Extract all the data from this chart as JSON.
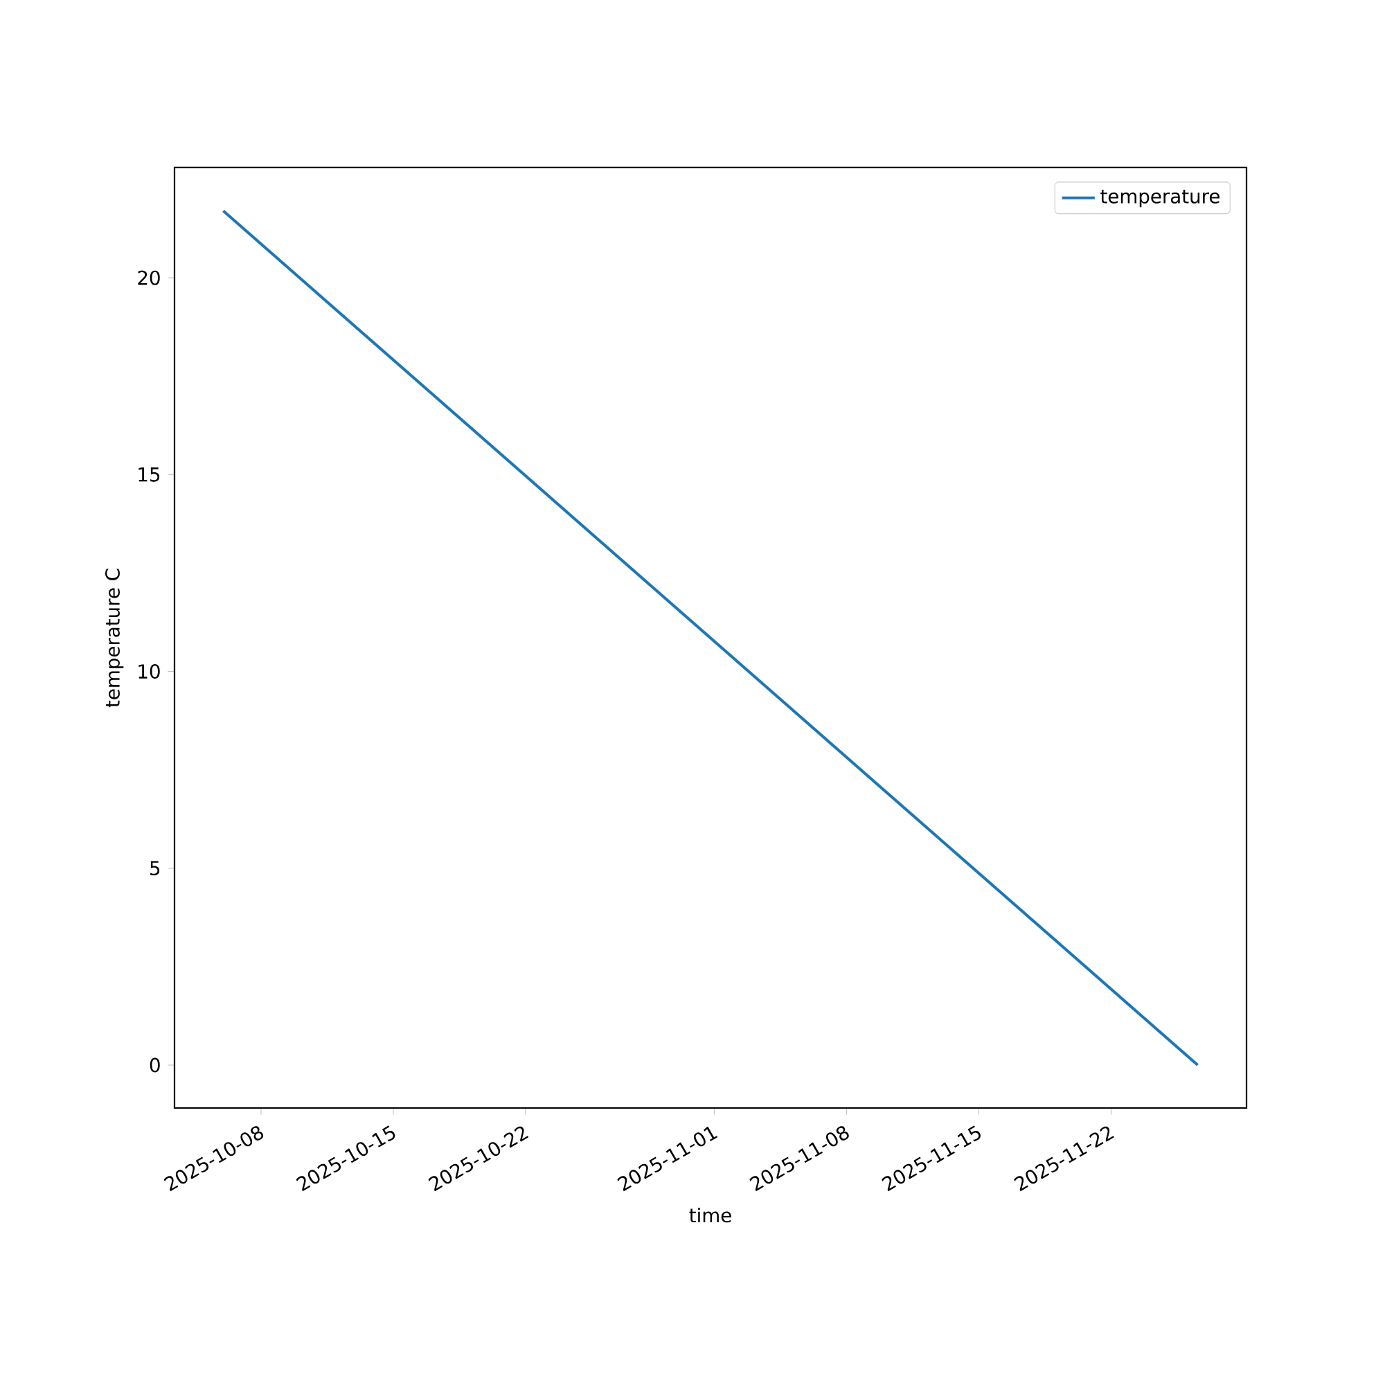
{
  "chart_data": {
    "type": "line",
    "xlabel": "time",
    "ylabel": "temperature C",
    "x": [
      "2025-10-06T00:00",
      "2025-11-26T14:00"
    ],
    "series": [
      {
        "name": "temperature",
        "color": "#1f77b4",
        "values": [
          21.7,
          0
        ]
      }
    ],
    "xlim": [
      "2025-10-03T10:00",
      "2025-11-29T04:00"
    ],
    "ylim": [
      -1.09,
      22.8
    ],
    "xticks": [
      "2025-10-08",
      "2025-10-15",
      "2025-10-22",
      "2025-11-01",
      "2025-11-08",
      "2025-11-15",
      "2025-11-22"
    ],
    "yticks": [
      0,
      5,
      10,
      15,
      20
    ],
    "legend": "top right"
  }
}
